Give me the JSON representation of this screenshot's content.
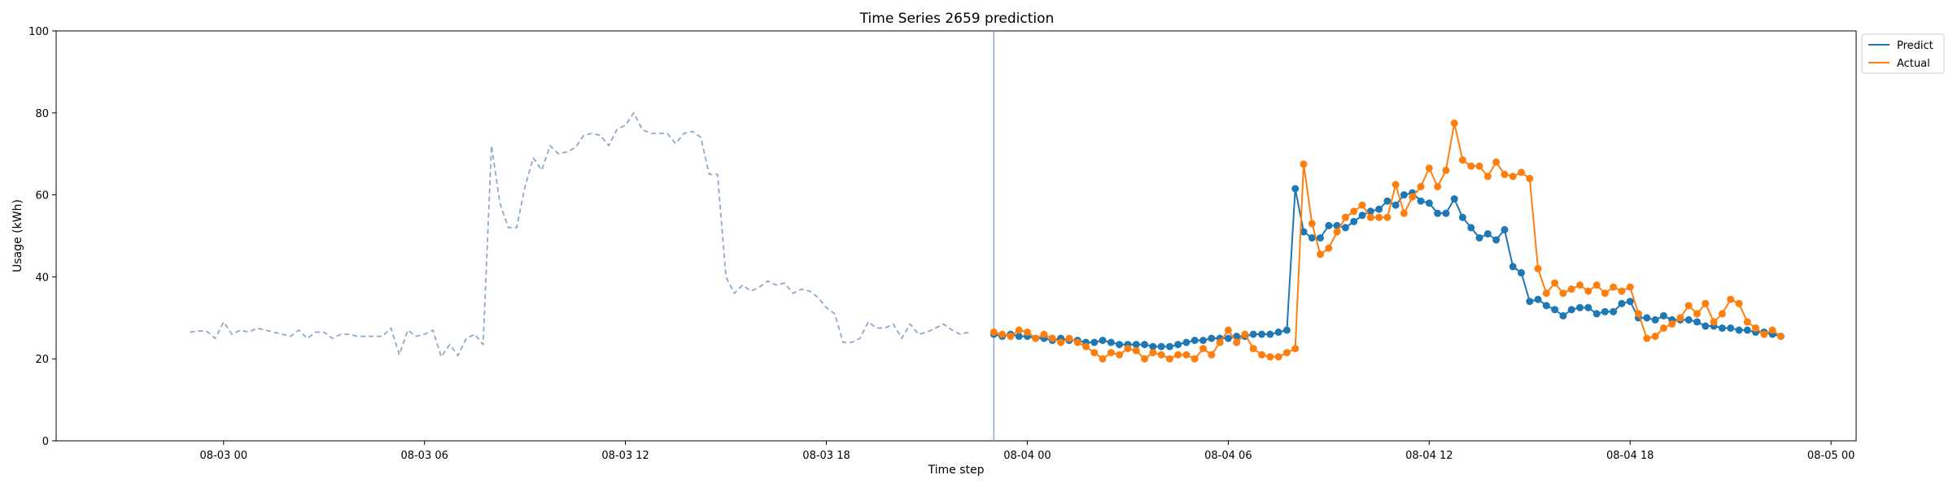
{
  "chart_data": {
    "type": "line",
    "title": "Time Series 2659 prediction",
    "xlabel": "Time step",
    "ylabel": "Usage (kWh)",
    "ylim": [
      0,
      100
    ],
    "yticks": [
      0,
      20,
      40,
      60,
      80,
      100
    ],
    "xlim": [
      "2024-08-02 19:00",
      "2024-08-05 00:45"
    ],
    "xticks": [
      {
        "t": "2024-08-03 00:00",
        "label": "08-03 00"
      },
      {
        "t": "2024-08-03 06:00",
        "label": "08-03 06"
      },
      {
        "t": "2024-08-03 12:00",
        "label": "08-03 12"
      },
      {
        "t": "2024-08-03 18:00",
        "label": "08-03 18"
      },
      {
        "t": "2024-08-04 00:00",
        "label": "08-04 00"
      },
      {
        "t": "2024-08-04 06:00",
        "label": "08-04 06"
      },
      {
        "t": "2024-08-04 12:00",
        "label": "08-04 12"
      },
      {
        "t": "2024-08-04 18:00",
        "label": "08-04 18"
      },
      {
        "t": "2024-08-05 00:00",
        "label": "08-05 00"
      }
    ],
    "grid": false,
    "legend_position": "top-right",
    "vline_at": "2024-08-03 23:00",
    "series": [
      {
        "name": "History",
        "role": "history",
        "color": "#8fa8c8",
        "style": "dashed",
        "start": "2024-08-02 23:00",
        "step_minutes": 15,
        "values": [
          26.5,
          26.8,
          26.7,
          25,
          29,
          26,
          27,
          26.5,
          27.5,
          27,
          26.5,
          26,
          25.5,
          27,
          25,
          26.5,
          26.5,
          25,
          26,
          26,
          25.5,
          25.5,
          25.5,
          25.5,
          27.5,
          21,
          27,
          25.5,
          26,
          27,
          20.5,
          23.5,
          20.8,
          25,
          26,
          23.5,
          72,
          58,
          52,
          52,
          62,
          69,
          66,
          72,
          70,
          70.5,
          71.5,
          74.5,
          75,
          74.5,
          72,
          76,
          77,
          80,
          76,
          75,
          75,
          75,
          72.5,
          75,
          75.5,
          74,
          65,
          65,
          40,
          36,
          38,
          36.5,
          37.5,
          39,
          38,
          38.5,
          36,
          37,
          36.5,
          35,
          32.5,
          31,
          24,
          24,
          25,
          29,
          27.5,
          27.5,
          28.5,
          25,
          28.5,
          26,
          26.5,
          27.5,
          28.5,
          27,
          26,
          26.5
        ]
      },
      {
        "name": "Predict",
        "role": "predict",
        "color": "#1f77b4",
        "style": "solid-markers",
        "start": "2024-08-03 23:00",
        "step_minutes": 15,
        "values": [
          26,
          25.5,
          26,
          25.5,
          25.5,
          25,
          25,
          24.5,
          25,
          24.5,
          24.5,
          24,
          24,
          24.5,
          24,
          23.5,
          23.5,
          23.5,
          23.5,
          23,
          23,
          23,
          23.5,
          24,
          24.5,
          24.5,
          25,
          25,
          25,
          25.5,
          25.5,
          26,
          26,
          26,
          26.5,
          27,
          61.5,
          51,
          49.5,
          49.5,
          52.5,
          52.5,
          52,
          53.5,
          55,
          56,
          56.5,
          58.5,
          57.5,
          60,
          60.5,
          58.5,
          58,
          55.5,
          55.5,
          59,
          54.5,
          52,
          49.5,
          50.5,
          49,
          51.5,
          42.5,
          41,
          34,
          34.5,
          33,
          32,
          30.5,
          32,
          32.5,
          32.5,
          31,
          31.5,
          31.5,
          33.5,
          34,
          30,
          30,
          29.5,
          30.5,
          29.5,
          29.5,
          29.5,
          29,
          28,
          28,
          27.5,
          27.5,
          27,
          27,
          26.5,
          26.5,
          26,
          25.5
        ]
      },
      {
        "name": "Actual",
        "role": "actual",
        "color": "#ff7f0e",
        "style": "solid-markers",
        "start": "2024-08-03 23:00",
        "step_minutes": 15,
        "values": [
          26.5,
          26,
          25.5,
          27,
          26.5,
          25,
          26,
          25,
          24,
          25,
          24,
          23,
          21.5,
          20,
          21.5,
          21,
          22.5,
          22,
          20,
          21.5,
          21,
          20,
          21,
          21,
          20,
          22.5,
          21,
          24,
          27,
          24,
          26,
          22.5,
          21,
          20.5,
          20.5,
          21.5,
          22.5,
          67.5,
          53,
          45.5,
          47,
          51,
          54.5,
          56,
          57.5,
          54.5,
          54.5,
          54.5,
          62.5,
          55.5,
          59.5,
          62,
          66.5,
          62,
          66,
          77.5,
          68.5,
          67,
          67,
          64.5,
          68,
          65,
          64.5,
          65.5,
          64,
          42,
          36,
          38.5,
          36,
          37,
          38,
          36.5,
          38,
          36,
          37.5,
          36.5,
          37.5,
          31,
          25,
          25.5,
          27.5,
          28.5,
          30,
          33,
          31,
          33.5,
          29,
          31,
          34.5,
          33.5,
          29,
          27.5,
          26,
          27,
          25.5
        ]
      }
    ]
  },
  "legend": {
    "items": [
      {
        "label": "Predict",
        "color": "#1f77b4"
      },
      {
        "label": "Actual",
        "color": "#ff7f0e"
      }
    ]
  }
}
